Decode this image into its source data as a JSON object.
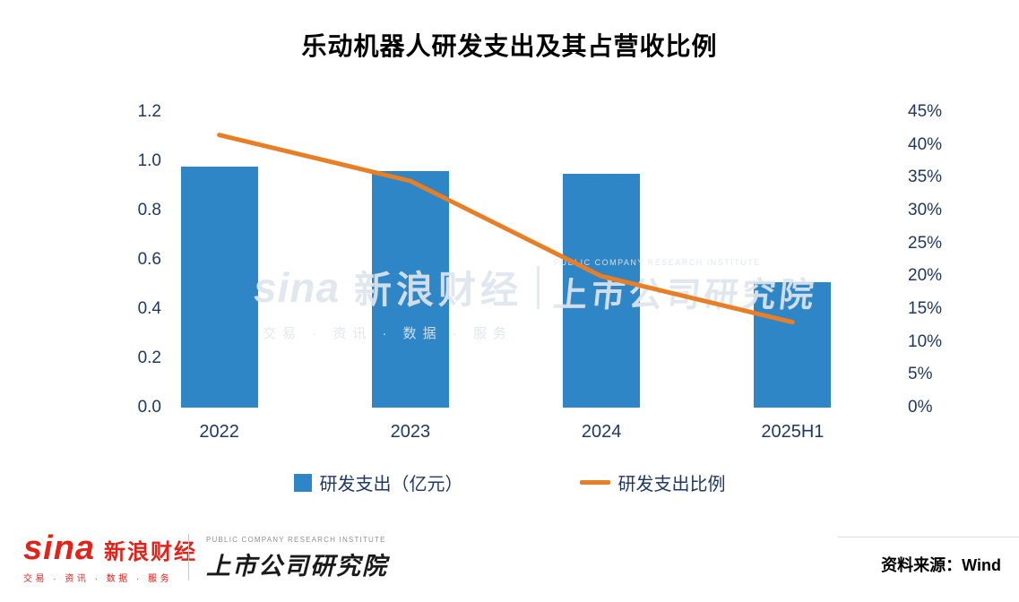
{
  "title": "乐动机器人研发支出及其占营收比例",
  "chart_data": {
    "type": "bar",
    "subtype": "combo-bar-line",
    "categories": [
      "2022",
      "2023",
      "2024",
      "2025H1"
    ],
    "series": [
      {
        "name": "研发支出（亿元）",
        "type": "bar",
        "axis": "left",
        "color": "#2E86C6",
        "values": [
          0.98,
          0.96,
          0.95,
          0.51
        ]
      },
      {
        "name": "研发支出比例",
        "type": "line",
        "axis": "right",
        "color": "#E87E25",
        "unit": "%",
        "values": [
          41.5,
          34.5,
          20,
          13
        ]
      }
    ],
    "left_axis": {
      "min": 0.0,
      "max": 1.2,
      "step": 0.2,
      "ticks": [
        "0.0",
        "0.2",
        "0.4",
        "0.6",
        "0.8",
        "1.0",
        "1.2"
      ]
    },
    "right_axis": {
      "min": 0,
      "max": 45,
      "step": 5,
      "ticks": [
        "0%",
        "5%",
        "10%",
        "15%",
        "20%",
        "25%",
        "30%",
        "35%",
        "40%",
        "45%"
      ]
    },
    "legend": [
      {
        "label": "研发支出（亿元）",
        "marker": "square",
        "color": "#2E86C6"
      },
      {
        "label": "研发支出比例",
        "marker": "line",
        "color": "#E87E25"
      }
    ],
    "grid": false,
    "legend_position": "bottom"
  },
  "watermark": {
    "sina": "sina",
    "sina_cn": "新浪财经",
    "institute_caption": "PUBLIC COMPANY RESEARCH INSTITUTE",
    "institute": "上市公司研究院",
    "tagline": "交易 · 资讯 · 数据 · 服务"
  },
  "footer": {
    "sina_logo": "sina",
    "sina_name": "新浪财经",
    "sina_tagline": "交易 · 资讯 · 数据 · 服务",
    "institute_caption": "PUBLIC COMPANY RESEARCH INSTITUTE",
    "institute_name": "上市公司研究院",
    "source_label": "资料来源：Wind"
  },
  "colors": {
    "bar": "#2E86C6",
    "line": "#E87E25",
    "axis_text": "#1F3864",
    "title_text": "#000000",
    "sina_red": "#E2231A"
  }
}
